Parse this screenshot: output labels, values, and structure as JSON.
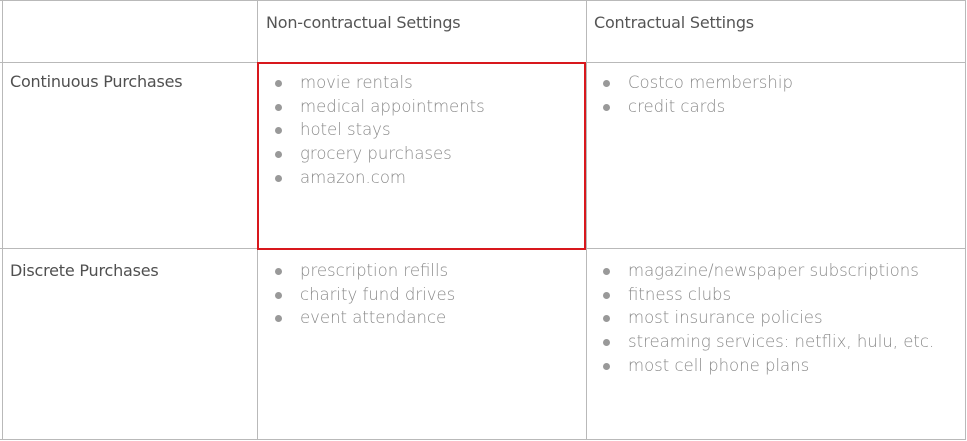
{
  "table": {
    "headers": {
      "corner": "",
      "col1": "Non-contractual Settings",
      "col2": "Contractual Settings"
    },
    "rows": [
      {
        "label": "Continuous Purchases",
        "col1": [
          "movie rentals",
          "medical appointments",
          "hotel stays",
          "grocery purchases",
          "amazon.com"
        ],
        "col2": [
          "Costco membership",
          "credit cards"
        ]
      },
      {
        "label": "Discrete Purchases",
        "col1": [
          "prescription refills",
          "charity fund drives",
          "event attendance"
        ],
        "col2": [
          "magazine/newspaper subscriptions",
          "fitness clubs",
          "most insurance policies",
          "streaming services: netflix, hulu, etc.",
          "most cell phone plans"
        ]
      }
    ]
  },
  "colors": {
    "grid_line": "#b9b9b9",
    "highlight": "#d8181d",
    "header_text": "#555555",
    "body_text": "#8a8a8a",
    "bullet": "#999999"
  }
}
